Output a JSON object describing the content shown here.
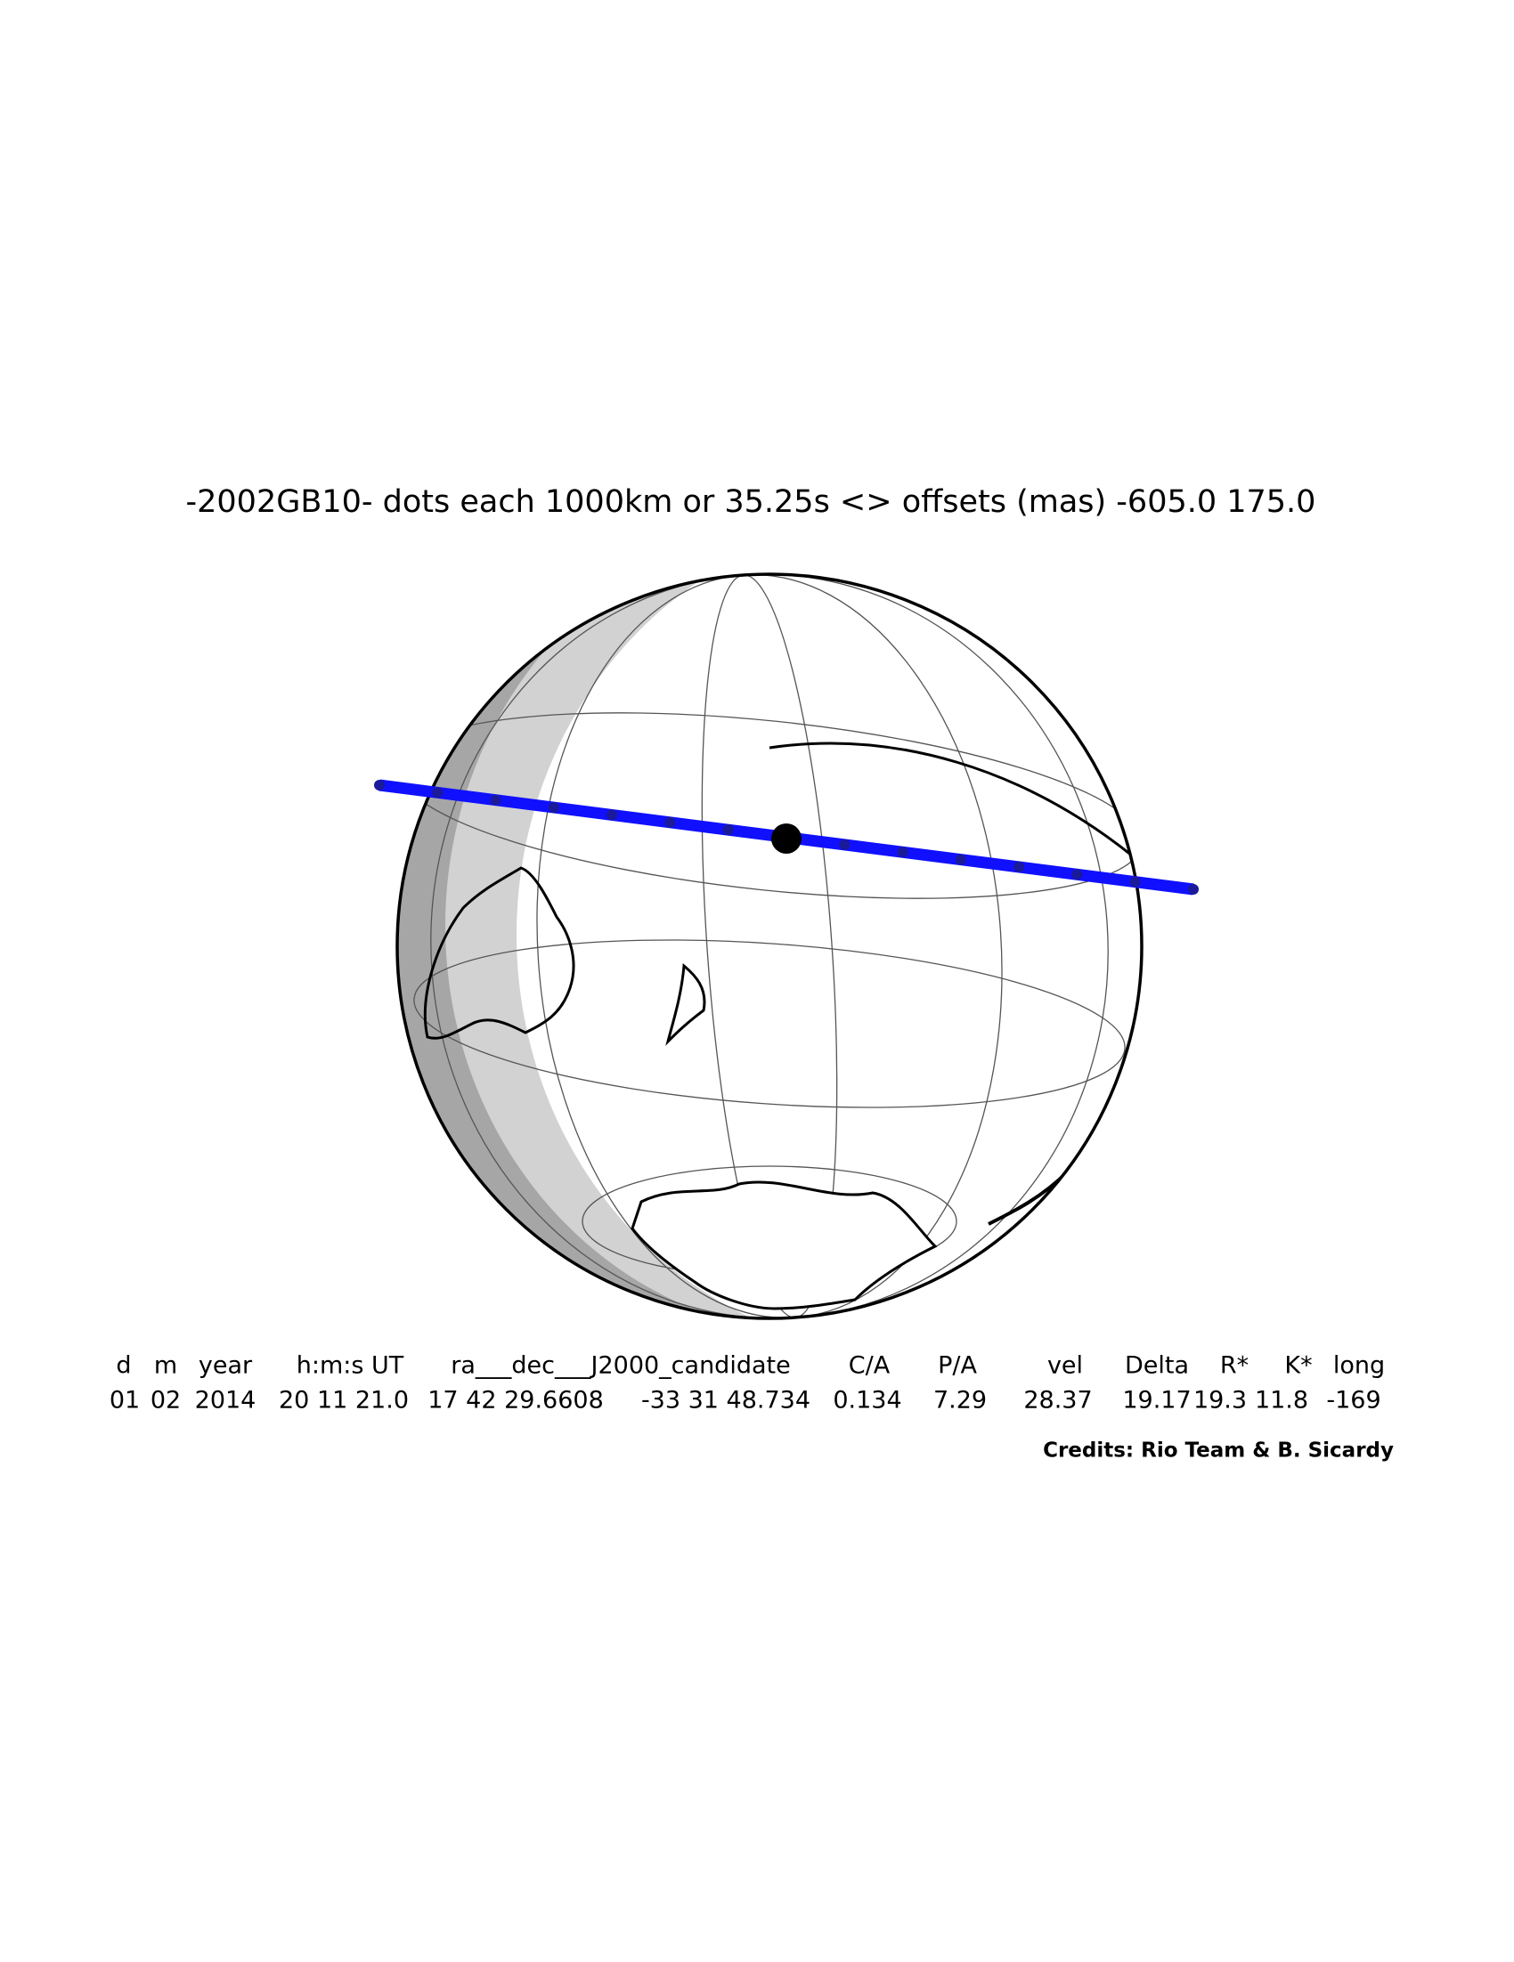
{
  "title": "-2002GB10- dots each 1000km or 35.25s <> offsets (mas) -605.0  175.0",
  "table": {
    "headers": [
      "d",
      "m",
      "year",
      "h:m:s UT",
      "ra___dec___J2000_candidate",
      "C/A",
      "P/A",
      "vel",
      "Delta",
      "R*",
      "K*",
      "long"
    ],
    "values": [
      "01",
      "02",
      "2014",
      "20 11 21.0",
      "17 42 29.6608",
      "-33 31 48.734",
      "0.134",
      "7.29",
      "28.37",
      "19.17",
      "19.3",
      "11.8",
      "-169"
    ]
  },
  "credits": "Credits: Rio Team & B. Sicardy"
}
